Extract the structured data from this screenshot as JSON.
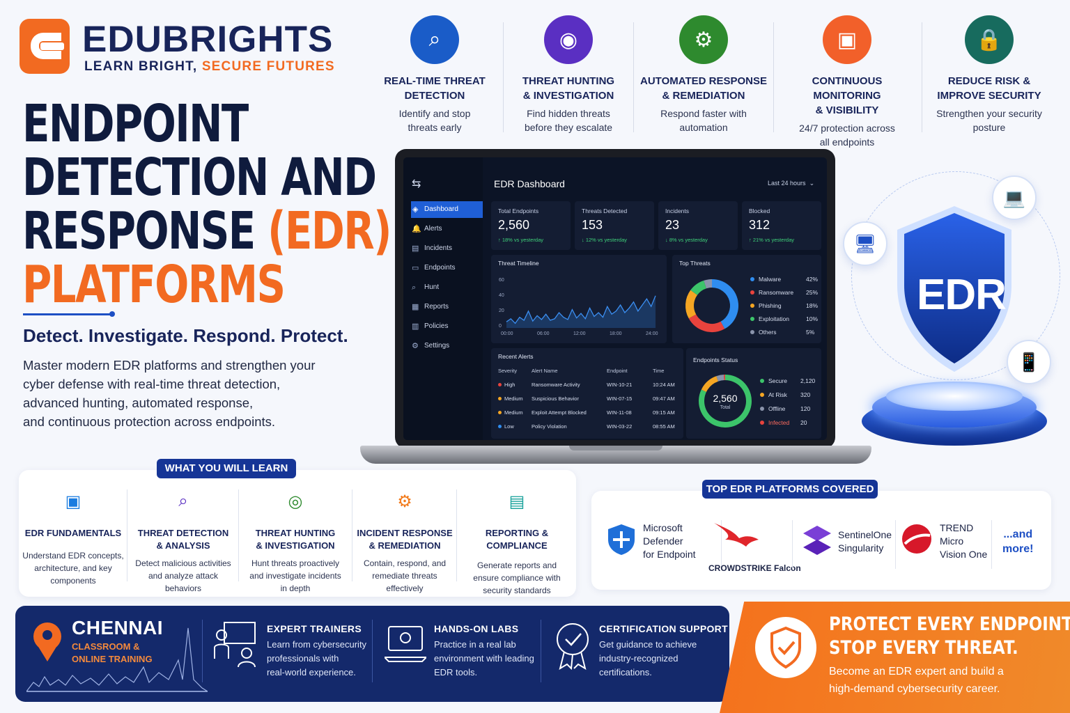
{
  "brand": {
    "name": "EDUBRIGHTS",
    "tagline_part1": "LEARN BRIGHT,",
    "tagline_part2": "SECURE FUTURES"
  },
  "headline": {
    "line1": "ENDPOINT",
    "line2": "DETECTION AND",
    "line3_main": "RESPONSE",
    "line3_accent": "(EDR)",
    "line4": "PLATFORMS"
  },
  "tagline": "Detect. Investigate. Respond. Protect.",
  "intro": {
    "line1": "Master modern EDR platforms and strengthen your",
    "line2": "cyber defense with real-time threat detection,",
    "line3": "advanced hunting, automated response,",
    "line4": "and continuous protection across endpoints."
  },
  "features": [
    {
      "title1": "REAL-TIME THREAT",
      "title2": "DETECTION",
      "desc1": "Identify and stop",
      "desc2": "threats early",
      "color": "#1a5cc8",
      "icon": "shield-search-icon"
    },
    {
      "title1": "THREAT HUNTING",
      "title2": "& INVESTIGATION",
      "desc1": "Find hidden threats",
      "desc2": "before they escalate",
      "color": "#5a2fc2",
      "icon": "eye-icon"
    },
    {
      "title1": "AUTOMATED RESPONSE",
      "title2": "& REMEDIATION",
      "desc1": "Respond faster with",
      "desc2": "automation",
      "color": "#2e8a2e",
      "icon": "gear-icon"
    },
    {
      "title1": "CONTINUOUS MONITORING",
      "title2": "& VISIBILITY",
      "desc1": "24/7 protection across",
      "desc2": "all endpoints",
      "color": "#f2602a",
      "icon": "monitor-icon"
    },
    {
      "title1": "REDUCE RISK &",
      "title2": "IMPROVE SECURITY",
      "desc1": "Strengthen your security",
      "desc2": "posture",
      "color": "#176b5e",
      "icon": "shield-lock-icon"
    }
  ],
  "dashboard": {
    "title": "EDR Dashboard",
    "range": "Last 24 hours",
    "nav": [
      "Dashboard",
      "Alerts",
      "Incidents",
      "Endpoints",
      "Hunt",
      "Reports",
      "Policies",
      "Settings"
    ],
    "kpis": [
      {
        "label": "Total Endpoints",
        "value": "2,560",
        "change": "↑ 18% vs yesterday"
      },
      {
        "label": "Threats Detected",
        "value": "153",
        "change": "↓ 12% vs yesterday"
      },
      {
        "label": "Incidents",
        "value": "23",
        "change": "↓ 8% vs yesterday"
      },
      {
        "label": "Blocked",
        "value": "312",
        "change": "↑ 21% vs yesterday"
      }
    ],
    "timeline": {
      "title": "Threat Timeline",
      "yticks": [
        "60",
        "40",
        "20",
        "0"
      ],
      "xticks": [
        "00:00",
        "06:00",
        "12:00",
        "18:00",
        "24:00"
      ]
    },
    "top_threats": {
      "title": "Top Threats",
      "items": [
        {
          "name": "Malware",
          "pct": "42%",
          "color": "#2f8df0"
        },
        {
          "name": "Ransomware",
          "pct": "25%",
          "color": "#e8433d"
        },
        {
          "name": "Phishing",
          "pct": "18%",
          "color": "#f5a623"
        },
        {
          "name": "Exploitation",
          "pct": "10%",
          "color": "#3cc46a"
        },
        {
          "name": "Others",
          "pct": "5%",
          "color": "#8a94ab"
        }
      ]
    },
    "alerts": {
      "title": "Recent Alerts",
      "headers": [
        "Severity",
        "Alert Name",
        "Endpoint",
        "Time"
      ],
      "rows": [
        {
          "sev": "High",
          "name": "Ransomware Activity",
          "ep": "WIN-10-21",
          "time": "10:24 AM",
          "color": "#e8433d"
        },
        {
          "sev": "Medium",
          "name": "Suspicious Behavior",
          "ep": "WIN-07-15",
          "time": "09:47 AM",
          "color": "#f5a623"
        },
        {
          "sev": "Medium",
          "name": "Exploit Attempt Blocked",
          "ep": "WIN-11-08",
          "time": "09:15 AM",
          "color": "#f5a623"
        },
        {
          "sev": "Low",
          "name": "Policy Violation",
          "ep": "WIN-03-22",
          "time": "08:55 AM",
          "color": "#2f8df0"
        }
      ]
    },
    "endpoints_status": {
      "title": "Endpoints Status",
      "total": "2,560",
      "total_label": "Total",
      "items": [
        {
          "name": "Secure",
          "value": "2,120",
          "color": "#3cc46a"
        },
        {
          "name": "At Risk",
          "value": "320",
          "color": "#f5a623"
        },
        {
          "name": "Offline",
          "value": "120",
          "color": "#8a94ab"
        },
        {
          "name": "Infected",
          "value": "20",
          "color": "#e8433d"
        }
      ]
    }
  },
  "shield_label": "EDR",
  "learn": {
    "heading": "WHAT YOU WILL LEARN",
    "items": [
      {
        "t1": "EDR FUNDAMENTALS",
        "t2": "",
        "d1": "Understand EDR concepts,",
        "d2": "architecture, and key",
        "d3": "components",
        "icon": "monitor-chart-icon",
        "color": "#1a7ce0"
      },
      {
        "t1": "THREAT DETECTION",
        "t2": "& ANALYSIS",
        "d1": "Detect malicious activities",
        "d2": "and analyze attack",
        "d3": "behaviors",
        "icon": "search-icon",
        "color": "#5a2fc2"
      },
      {
        "t1": "THREAT HUNTING",
        "t2": "& INVESTIGATION",
        "d1": "Hunt threats proactively",
        "d2": "and investigate incidents",
        "d3": "in depth",
        "icon": "target-icon",
        "color": "#2e8a2e"
      },
      {
        "t1": "INCIDENT RESPONSE",
        "t2": "& REMEDIATION",
        "d1": "Contain, respond, and",
        "d2": "remediate threats",
        "d3": "effectively",
        "icon": "gear-icon",
        "color": "#f27a1a"
      },
      {
        "t1": "REPORTING & COMPLIANCE",
        "t2": "",
        "d1": "Generate reports and",
        "d2": "ensure compliance with",
        "d3": "security standards",
        "icon": "document-icon",
        "color": "#17a19a"
      }
    ]
  },
  "platforms": {
    "heading": "TOP EDR PLATFORMS COVERED",
    "ms1": "Microsoft",
    "ms2": "Defender",
    "ms3": "for Endpoint",
    "cs": "CROWDSTRIKE Falcon",
    "s1a": "SentinelOne",
    "s1b": "Singularity",
    "tm1": "TREND",
    "tm2": "Micro",
    "tm3": "Vision One",
    "more1": "...and",
    "more2": "more!"
  },
  "bottom": {
    "city": "CHENNAI",
    "mode1": "CLASSROOM &",
    "mode2": "ONLINE TRAINING",
    "blocks": [
      {
        "title": "EXPERT TRAINERS",
        "l1": "Learn from cybersecurity",
        "l2": "professionals with",
        "l3": "real-world experience."
      },
      {
        "title": "HANDS-ON LABS",
        "l1": "Practice in a real lab",
        "l2": "environment with leading",
        "l3": "EDR tools."
      },
      {
        "title": "CERTIFICATION SUPPORT",
        "l1": "Get guidance to achieve",
        "l2": "industry-recognized",
        "l3": "certifications."
      }
    ],
    "cta1": "PROTECT EVERY ENDPOINT.",
    "cta2": "STOP EVERY THREAT.",
    "cta_sub1": "Become an EDR expert and build a",
    "cta_sub2": "high-demand cybersecurity career."
  }
}
